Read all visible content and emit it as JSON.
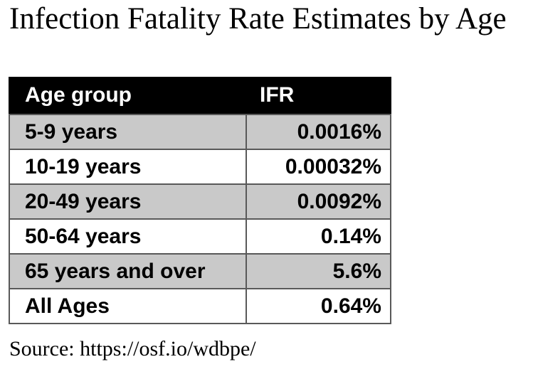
{
  "page": {
    "title": "Infection Fatality Rate Estimates by Age",
    "source": "Source: https://osf.io/wdbpe/"
  },
  "table": {
    "headers": {
      "age_group": "Age group",
      "ifr": "IFR"
    },
    "rows": [
      {
        "age_group": "5-9 years",
        "ifr": "0.0016%"
      },
      {
        "age_group": "10-19 years",
        "ifr": "0.00032%"
      },
      {
        "age_group": "20-49 years",
        "ifr": "0.0092%"
      },
      {
        "age_group": "50-64 years",
        "ifr": "0.14%"
      },
      {
        "age_group": "65 years and over",
        "ifr": "5.6%"
      },
      {
        "age_group": "All Ages",
        "ifr": "0.64%"
      }
    ]
  },
  "colors": {
    "header_bg": "#000000",
    "header_text": "#ffffff",
    "row_band_bg": "#c9c9c9",
    "row_plain_bg": "#ffffff",
    "border": "#595959",
    "text": "#000000"
  },
  "chart_data": {
    "type": "table",
    "title": "Infection Fatality Rate Estimates by Age",
    "columns": [
      "Age group",
      "IFR"
    ],
    "rows": [
      [
        "5-9 years",
        "0.0016%"
      ],
      [
        "10-19 years",
        "0.00032%"
      ],
      [
        "20-49 years",
        "0.0092%"
      ],
      [
        "50-64 years",
        "0.14%"
      ],
      [
        "65 years and over",
        "5.6%"
      ],
      [
        "All Ages",
        "0.64%"
      ]
    ],
    "ifr_values_percent": [
      0.0016,
      0.00032,
      0.0092,
      0.14,
      5.6,
      0.64
    ],
    "source": "Source: https://osf.io/wdbpe/",
    "layout": {
      "banding": "alternating gray/white starting gray",
      "value_alignment": "right"
    }
  }
}
